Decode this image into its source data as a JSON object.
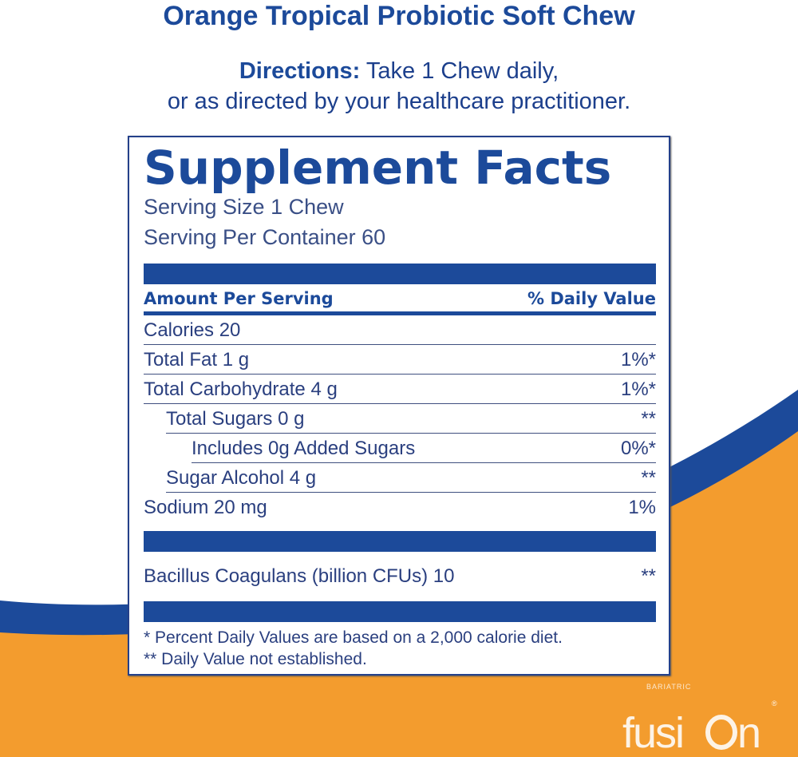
{
  "title": "Orange Tropical Probiotic Soft Chew",
  "directions": {
    "label": "Directions:",
    "line1": " Take 1 Chew daily,",
    "line2": "or as directed by your healthcare practitioner."
  },
  "facts": {
    "heading": "Supplement Facts",
    "serving_size": "Serving Size 1 Chew",
    "servings_per_container": "Serving Per Container 60",
    "header_amount": "Amount Per Serving",
    "header_dv": "% Daily Value",
    "rows": [
      {
        "label": "Calories  20",
        "dv": ""
      },
      {
        "label": "Total Fat  1 g",
        "dv": "1%*"
      },
      {
        "label": "Total Carbohydrate  4 g",
        "dv": "1%*"
      },
      {
        "label": "Total Sugars  0 g",
        "dv": "**"
      },
      {
        "label": "Includes 0g Added Sugars",
        "dv": "0%*"
      },
      {
        "label": "Sugar Alcohol  4 g",
        "dv": "**"
      },
      {
        "label": "Sodium  20 mg",
        "dv": "1%"
      }
    ],
    "probiotic": {
      "label": "Bacillus Coagulans (billion CFUs) 10",
      "dv": "**"
    },
    "footnote1": "* Percent Daily Values are based on a 2,000 calorie diet.",
    "footnote2": "** Daily Value not established."
  },
  "logo": {
    "brand": "fusion",
    "tagline": "BARIATRIC"
  },
  "colors": {
    "blue": "#1c4a9a",
    "orange": "#f39c2e"
  }
}
